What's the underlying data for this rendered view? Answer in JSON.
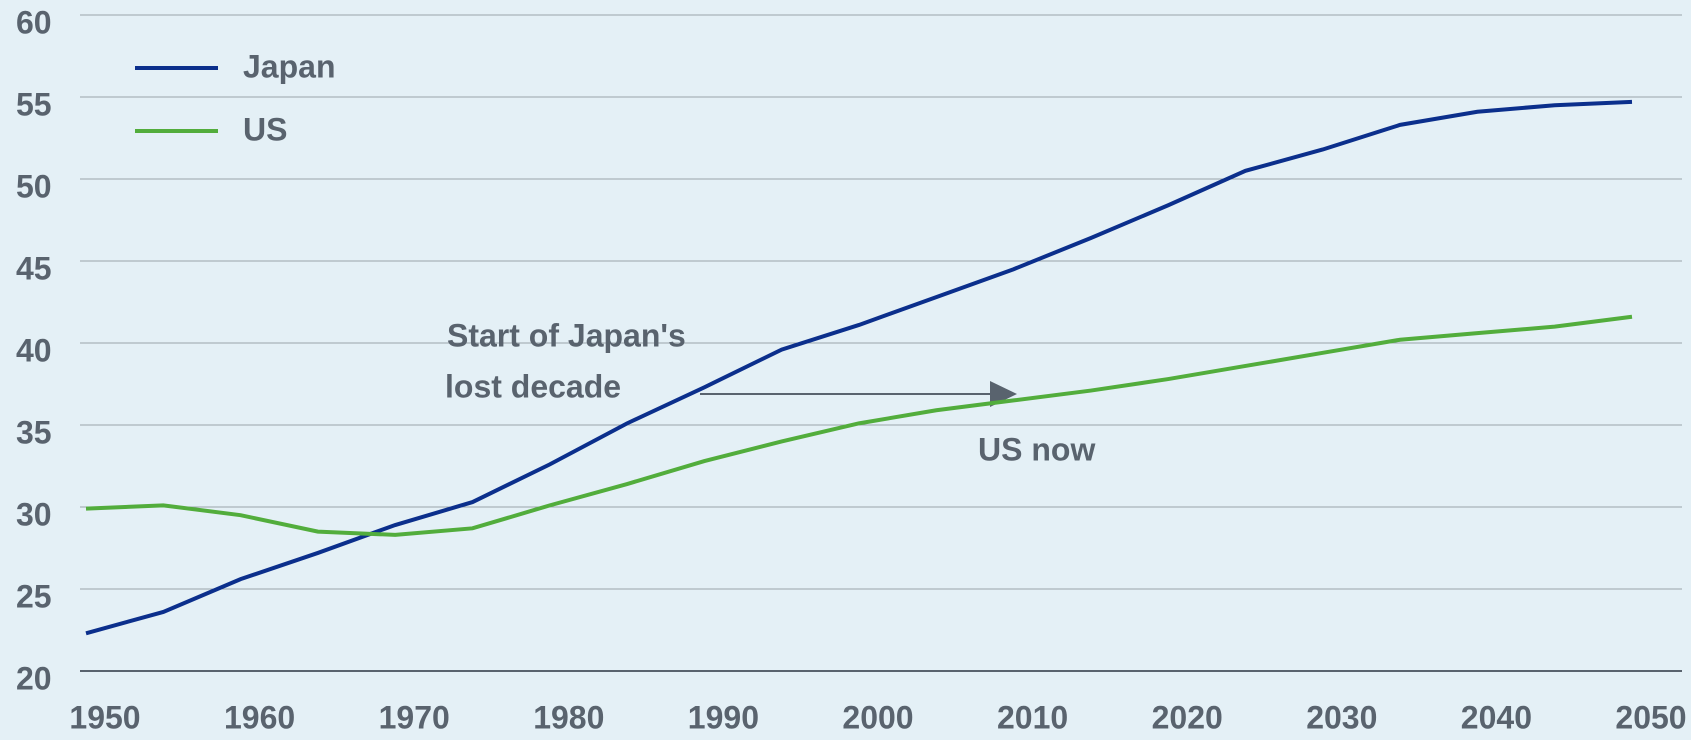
{
  "chart_data": {
    "type": "line",
    "x": [
      1950,
      1955,
      1960,
      1965,
      1970,
      1975,
      1980,
      1985,
      1990,
      1995,
      2000,
      2005,
      2010,
      2015,
      2020,
      2025,
      2030,
      2035,
      2040,
      2045,
      2050
    ],
    "series": [
      {
        "name": "Japan",
        "color": "#0b2f8c",
        "values": [
          22.3,
          23.6,
          25.6,
          27.2,
          28.9,
          30.3,
          32.6,
          35.1,
          37.3,
          39.6,
          41.1,
          42.8,
          44.5,
          46.4,
          48.4,
          50.5,
          51.8,
          53.3,
          54.1,
          54.5,
          54.7
        ]
      },
      {
        "name": "US",
        "color": "#52ad3c",
        "values": [
          29.9,
          30.1,
          29.5,
          28.5,
          28.3,
          28.7,
          30.1,
          31.4,
          32.8,
          34.0,
          35.1,
          35.9,
          36.5,
          37.1,
          37.8,
          38.6,
          39.4,
          40.2,
          40.6,
          41.0,
          41.6
        ]
      }
    ],
    "xlim": [
      1950,
      2050
    ],
    "xticks": [
      1950,
      1960,
      1970,
      1980,
      1990,
      2000,
      2010,
      2020,
      2030,
      2040,
      2050
    ],
    "ylim": [
      20,
      60
    ],
    "yticks": [
      20,
      25,
      30,
      35,
      40,
      45,
      50,
      55,
      60
    ],
    "grid": true,
    "legend": "upper left",
    "annotations": [
      {
        "lines": [
          "Start of Japan's",
          "lost decade"
        ]
      },
      {
        "lines": [
          "US now"
        ]
      }
    ]
  }
}
